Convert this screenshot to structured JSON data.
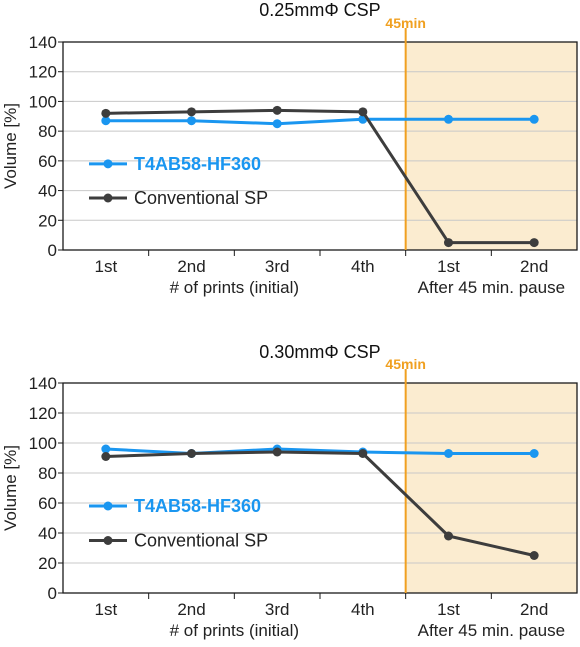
{
  "colors": {
    "blue": "#1a96f0",
    "dark": "#3d3d3d",
    "orange": "#f0a020",
    "pause_shade": "#fbecd0",
    "axis": "#1a1a1a"
  },
  "chart_data": [
    {
      "type": "line",
      "title": "0.25mmΦ CSP",
      "ylabel": "Volume [%]",
      "ylim": [
        0,
        140
      ],
      "yticks": [
        0,
        20,
        40,
        60,
        80,
        100,
        120,
        140
      ],
      "categories": [
        "1st",
        "2nd",
        "3rd",
        "4th",
        "1st",
        "2nd"
      ],
      "group_labels": [
        "# of prints (initial)",
        "After 45 min. pause"
      ],
      "marker_label": "45min",
      "legend_position": "left",
      "series": [
        {
          "name": "T4AB58-HF360",
          "color_key": "blue",
          "values": [
            87,
            87,
            85,
            88,
            88,
            88
          ]
        },
        {
          "name": "Conventional SP",
          "color_key": "dark",
          "values": [
            92,
            93,
            94,
            93,
            5,
            5
          ]
        }
      ]
    },
    {
      "type": "line",
      "title": "0.30mmΦ CSP",
      "ylabel": "Volume [%]",
      "ylim": [
        0,
        140
      ],
      "yticks": [
        0,
        20,
        40,
        60,
        80,
        100,
        120,
        140
      ],
      "categories": [
        "1st",
        "2nd",
        "3rd",
        "4th",
        "1st",
        "2nd"
      ],
      "group_labels": [
        "# of prints (initial)",
        "After 45 min. pause"
      ],
      "marker_label": "45min",
      "legend_position": "left",
      "series": [
        {
          "name": "T4AB58-HF360",
          "color_key": "blue",
          "values": [
            96,
            93,
            96,
            94,
            93,
            93
          ]
        },
        {
          "name": "Conventional SP",
          "color_key": "dark",
          "values": [
            91,
            93,
            94,
            93,
            38,
            25
          ]
        }
      ]
    }
  ]
}
